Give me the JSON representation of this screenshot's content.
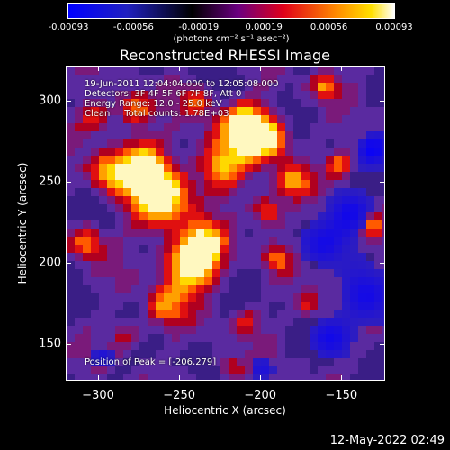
{
  "colorbar": {
    "tick_labels": [
      "-0.00093",
      "-0.00056",
      "-0.00019",
      "0.00019",
      "0.00056",
      "0.00093"
    ],
    "unit": "(photons cm⁻² s⁻¹ asec⁻²)",
    "colors": [
      "#0000ff",
      "#000000",
      "#6a00a8",
      "#ff0000",
      "#ff9900",
      "#ffffff"
    ]
  },
  "title": "Reconstructed RHESSI Image",
  "annotations": {
    "time": "19-Jun-2011 12:04:04.000 to 12:05:08.000",
    "detectors": "Detectors: 3F 4F 5F 6F 7F 8F, Att 0",
    "energy": "Energy Range: 12.0 - 25.0 keV",
    "clean": "Clean     Total counts: 1.78E+03",
    "peak": "Position of Peak = [-206,279]"
  },
  "chart_data": {
    "type": "heatmap",
    "xlabel": "Heliocentric X (arcsec)",
    "ylabel": "Heliocentric Y (arcsec)",
    "xlim": [
      -320,
      -123
    ],
    "ylim": [
      127,
      322
    ],
    "x_ticks": [
      -300,
      -250,
      -200,
      -150
    ],
    "y_ticks": [
      150,
      200,
      250,
      300
    ],
    "x_tick_labels": [
      "−300",
      "−250",
      "−200",
      "−150"
    ],
    "y_tick_labels": [
      "150",
      "200",
      "250",
      "300"
    ],
    "peak_position": [
      -206,
      279
    ]
  },
  "timestamp": "12-May-2022 02:49"
}
